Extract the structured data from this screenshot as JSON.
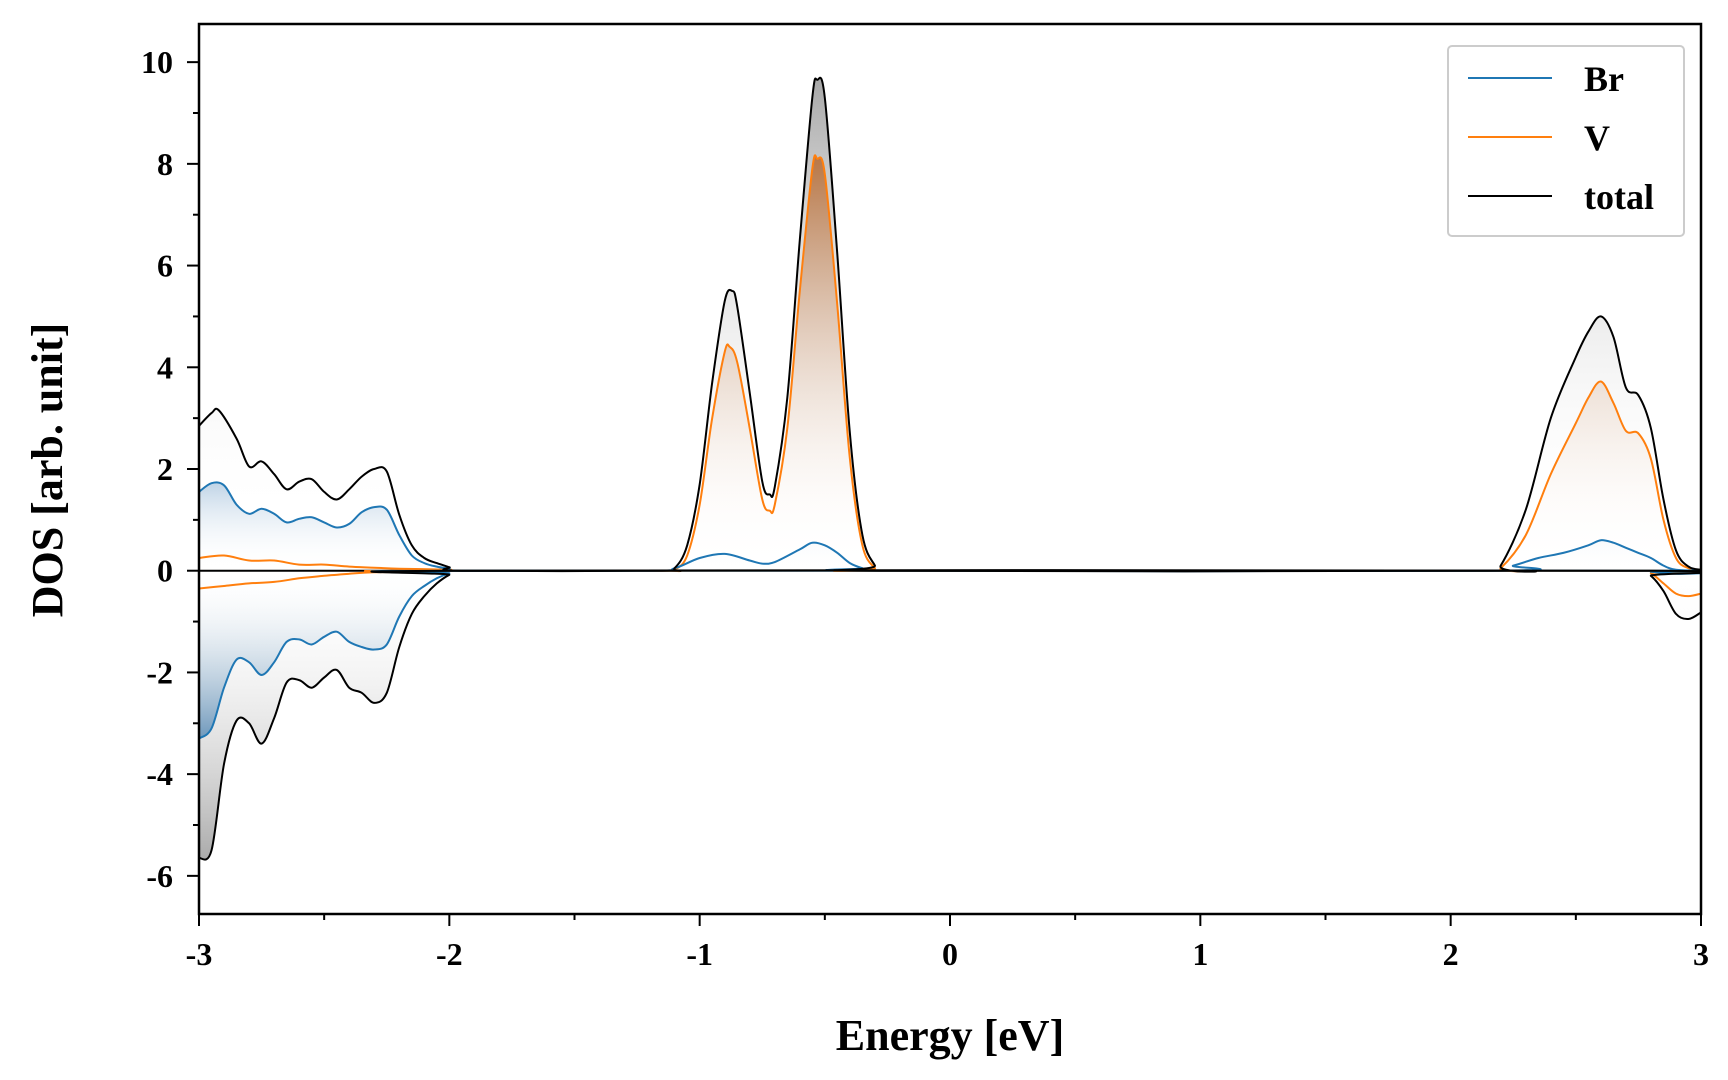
{
  "chart_data": {
    "type": "area",
    "title": "",
    "xlabel": "Energy [eV]",
    "ylabel": "DOS [arb. unit]",
    "xlim": [
      -3,
      3
    ],
    "ylim": [
      -6.75,
      10.75
    ],
    "xticks": [
      -3,
      -2,
      -1,
      0,
      1,
      2,
      3
    ],
    "xtick_labels": [
      "-3",
      "-2",
      "-1",
      "0",
      "1",
      "2",
      "3"
    ],
    "yticks": [
      -6,
      -4,
      -2,
      0,
      2,
      4,
      6,
      8,
      10
    ],
    "ytick_labels": [
      "-6",
      "-4",
      "-2",
      "0",
      "2",
      "4",
      "6",
      "8",
      "10"
    ],
    "grid": false,
    "legend_position": "top-right",
    "series": [
      {
        "name": "Br",
        "color": "#1f77b4",
        "up": [
          [
            -3,
            1.55
          ],
          [
            -2.95,
            1.72
          ],
          [
            -2.9,
            1.68
          ],
          [
            -2.85,
            1.3
          ],
          [
            -2.8,
            1.12
          ],
          [
            -2.75,
            1.22
          ],
          [
            -2.7,
            1.12
          ],
          [
            -2.65,
            0.95
          ],
          [
            -2.6,
            1.02
          ],
          [
            -2.55,
            1.05
          ],
          [
            -2.5,
            0.95
          ],
          [
            -2.45,
            0.85
          ],
          [
            -2.4,
            0.92
          ],
          [
            -2.35,
            1.15
          ],
          [
            -2.3,
            1.25
          ],
          [
            -2.25,
            1.2
          ],
          [
            -2.2,
            0.7
          ],
          [
            -2.15,
            0.3
          ],
          [
            -2.1,
            0.15
          ],
          [
            -2.05,
            0.08
          ],
          [
            -2,
            0.04
          ],
          [
            -1.95,
            0
          ],
          [
            -1.2,
            0
          ],
          [
            -1.1,
            0.05
          ],
          [
            -1,
            0.25
          ],
          [
            -0.9,
            0.33
          ],
          [
            -0.8,
            0.2
          ],
          [
            -0.75,
            0.14
          ],
          [
            -0.7,
            0.17
          ],
          [
            -0.6,
            0.42
          ],
          [
            -0.55,
            0.55
          ],
          [
            -0.5,
            0.5
          ],
          [
            -0.45,
            0.35
          ],
          [
            -0.4,
            0.15
          ],
          [
            -0.35,
            0.05
          ],
          [
            -0.3,
            0
          ],
          [
            2.15,
            0
          ],
          [
            2.25,
            0.1
          ],
          [
            2.35,
            0.25
          ],
          [
            2.45,
            0.35
          ],
          [
            2.55,
            0.5
          ],
          [
            2.6,
            0.6
          ],
          [
            2.65,
            0.55
          ],
          [
            2.7,
            0.45
          ],
          [
            2.75,
            0.35
          ],
          [
            2.8,
            0.25
          ],
          [
            2.85,
            0.1
          ],
          [
            2.9,
            0.02
          ],
          [
            3,
            0
          ]
        ],
        "down": [
          [
            -3,
            -3.3
          ],
          [
            -2.95,
            -3.1
          ],
          [
            -2.9,
            -2.3
          ],
          [
            -2.85,
            -1.75
          ],
          [
            -2.8,
            -1.8
          ],
          [
            -2.75,
            -2.05
          ],
          [
            -2.7,
            -1.8
          ],
          [
            -2.65,
            -1.4
          ],
          [
            -2.6,
            -1.35
          ],
          [
            -2.55,
            -1.45
          ],
          [
            -2.5,
            -1.3
          ],
          [
            -2.45,
            -1.2
          ],
          [
            -2.4,
            -1.4
          ],
          [
            -2.35,
            -1.5
          ],
          [
            -2.3,
            -1.55
          ],
          [
            -2.25,
            -1.45
          ],
          [
            -2.2,
            -0.9
          ],
          [
            -2.15,
            -0.5
          ],
          [
            -2.1,
            -0.3
          ],
          [
            -2.05,
            -0.15
          ],
          [
            -2,
            -0.05
          ],
          [
            -1.95,
            0
          ],
          [
            2.75,
            0
          ],
          [
            2.8,
            -0.02
          ],
          [
            2.9,
            -0.06
          ],
          [
            3,
            -0.05
          ]
        ]
      },
      {
        "name": "V",
        "color": "#ff7f0e",
        "up": [
          [
            -3,
            0.25
          ],
          [
            -2.9,
            0.3
          ],
          [
            -2.8,
            0.2
          ],
          [
            -2.7,
            0.2
          ],
          [
            -2.6,
            0.12
          ],
          [
            -2.5,
            0.12
          ],
          [
            -2.4,
            0.08
          ],
          [
            -2.3,
            0.06
          ],
          [
            -2.2,
            0.04
          ],
          [
            -2,
            0.02
          ],
          [
            -1.95,
            0
          ],
          [
            -1.15,
            0
          ],
          [
            -1.1,
            0.02
          ],
          [
            -1.05,
            0.3
          ],
          [
            -1,
            1.3
          ],
          [
            -0.95,
            3.0
          ],
          [
            -0.9,
            4.3
          ],
          [
            -0.88,
            4.4
          ],
          [
            -0.85,
            4.1
          ],
          [
            -0.8,
            2.8
          ],
          [
            -0.75,
            1.4
          ],
          [
            -0.72,
            1.18
          ],
          [
            -0.7,
            1.3
          ],
          [
            -0.65,
            2.8
          ],
          [
            -0.6,
            5.5
          ],
          [
            -0.55,
            7.9
          ],
          [
            -0.53,
            8.1
          ],
          [
            -0.5,
            7.8
          ],
          [
            -0.45,
            5.2
          ],
          [
            -0.4,
            2.2
          ],
          [
            -0.35,
            0.5
          ],
          [
            -0.3,
            0.05
          ],
          [
            -0.28,
            0
          ],
          [
            2.15,
            0
          ],
          [
            2.2,
            0.05
          ],
          [
            2.3,
            0.7
          ],
          [
            2.4,
            1.9
          ],
          [
            2.5,
            2.9
          ],
          [
            2.55,
            3.4
          ],
          [
            2.6,
            3.72
          ],
          [
            2.65,
            3.3
          ],
          [
            2.7,
            2.75
          ],
          [
            2.75,
            2.7
          ],
          [
            2.8,
            2.2
          ],
          [
            2.85,
            1.0
          ],
          [
            2.9,
            0.25
          ],
          [
            2.95,
            0.05
          ],
          [
            3,
            0.02
          ]
        ],
        "down": [
          [
            -3,
            -0.35
          ],
          [
            -2.9,
            -0.3
          ],
          [
            -2.8,
            -0.25
          ],
          [
            -2.7,
            -0.22
          ],
          [
            -2.6,
            -0.15
          ],
          [
            -2.5,
            -0.1
          ],
          [
            -2.4,
            -0.06
          ],
          [
            -2.3,
            -0.03
          ],
          [
            -2.1,
            -0.02
          ],
          [
            -1.95,
            0
          ],
          [
            2.75,
            0
          ],
          [
            2.8,
            -0.05
          ],
          [
            2.85,
            -0.25
          ],
          [
            2.9,
            -0.45
          ],
          [
            2.95,
            -0.5
          ],
          [
            3,
            -0.45
          ]
        ]
      },
      {
        "name": "total",
        "color": "#000000",
        "up": [
          [
            -3,
            2.85
          ],
          [
            -2.95,
            3.1
          ],
          [
            -2.92,
            3.15
          ],
          [
            -2.85,
            2.6
          ],
          [
            -2.8,
            2.05
          ],
          [
            -2.75,
            2.15
          ],
          [
            -2.7,
            1.9
          ],
          [
            -2.65,
            1.6
          ],
          [
            -2.6,
            1.75
          ],
          [
            -2.55,
            1.8
          ],
          [
            -2.5,
            1.55
          ],
          [
            -2.45,
            1.4
          ],
          [
            -2.4,
            1.6
          ],
          [
            -2.35,
            1.85
          ],
          [
            -2.3,
            2.0
          ],
          [
            -2.25,
            1.95
          ],
          [
            -2.2,
            1.1
          ],
          [
            -2.15,
            0.5
          ],
          [
            -2.1,
            0.25
          ],
          [
            -2.05,
            0.15
          ],
          [
            -2,
            0.07
          ],
          [
            -1.95,
            0
          ],
          [
            -1.15,
            0
          ],
          [
            -1.1,
            0.05
          ],
          [
            -1.05,
            0.5
          ],
          [
            -1,
            1.7
          ],
          [
            -0.95,
            3.7
          ],
          [
            -0.9,
            5.3
          ],
          [
            -0.87,
            5.5
          ],
          [
            -0.85,
            5.2
          ],
          [
            -0.8,
            3.5
          ],
          [
            -0.75,
            1.75
          ],
          [
            -0.72,
            1.5
          ],
          [
            -0.7,
            1.65
          ],
          [
            -0.65,
            3.4
          ],
          [
            -0.6,
            6.5
          ],
          [
            -0.55,
            9.3
          ],
          [
            -0.53,
            9.65
          ],
          [
            -0.5,
            9.3
          ],
          [
            -0.45,
            6.2
          ],
          [
            -0.4,
            2.7
          ],
          [
            -0.35,
            0.7
          ],
          [
            -0.3,
            0.1
          ],
          [
            -0.28,
            0
          ],
          [
            2.15,
            0
          ],
          [
            2.2,
            0.1
          ],
          [
            2.3,
            1.2
          ],
          [
            2.4,
            3.0
          ],
          [
            2.5,
            4.2
          ],
          [
            2.55,
            4.7
          ],
          [
            2.6,
            5.0
          ],
          [
            2.65,
            4.6
          ],
          [
            2.7,
            3.6
          ],
          [
            2.75,
            3.45
          ],
          [
            2.8,
            2.8
          ],
          [
            2.85,
            1.4
          ],
          [
            2.9,
            0.4
          ],
          [
            2.95,
            0.08
          ],
          [
            3,
            0.02
          ]
        ],
        "down": [
          [
            -3,
            -5.65
          ],
          [
            -2.95,
            -5.5
          ],
          [
            -2.9,
            -3.8
          ],
          [
            -2.85,
            -2.95
          ],
          [
            -2.8,
            -3.0
          ],
          [
            -2.75,
            -3.4
          ],
          [
            -2.7,
            -2.9
          ],
          [
            -2.65,
            -2.2
          ],
          [
            -2.6,
            -2.15
          ],
          [
            -2.55,
            -2.3
          ],
          [
            -2.5,
            -2.1
          ],
          [
            -2.45,
            -1.95
          ],
          [
            -2.4,
            -2.3
          ],
          [
            -2.35,
            -2.4
          ],
          [
            -2.3,
            -2.6
          ],
          [
            -2.25,
            -2.4
          ],
          [
            -2.2,
            -1.5
          ],
          [
            -2.15,
            -0.85
          ],
          [
            -2.1,
            -0.5
          ],
          [
            -2.05,
            -0.25
          ],
          [
            -2,
            -0.08
          ],
          [
            -1.95,
            0
          ],
          [
            2.75,
            0
          ],
          [
            2.8,
            -0.1
          ],
          [
            2.85,
            -0.4
          ],
          [
            2.9,
            -0.85
          ],
          [
            2.95,
            -0.95
          ],
          [
            3,
            -0.82
          ]
        ]
      }
    ]
  }
}
